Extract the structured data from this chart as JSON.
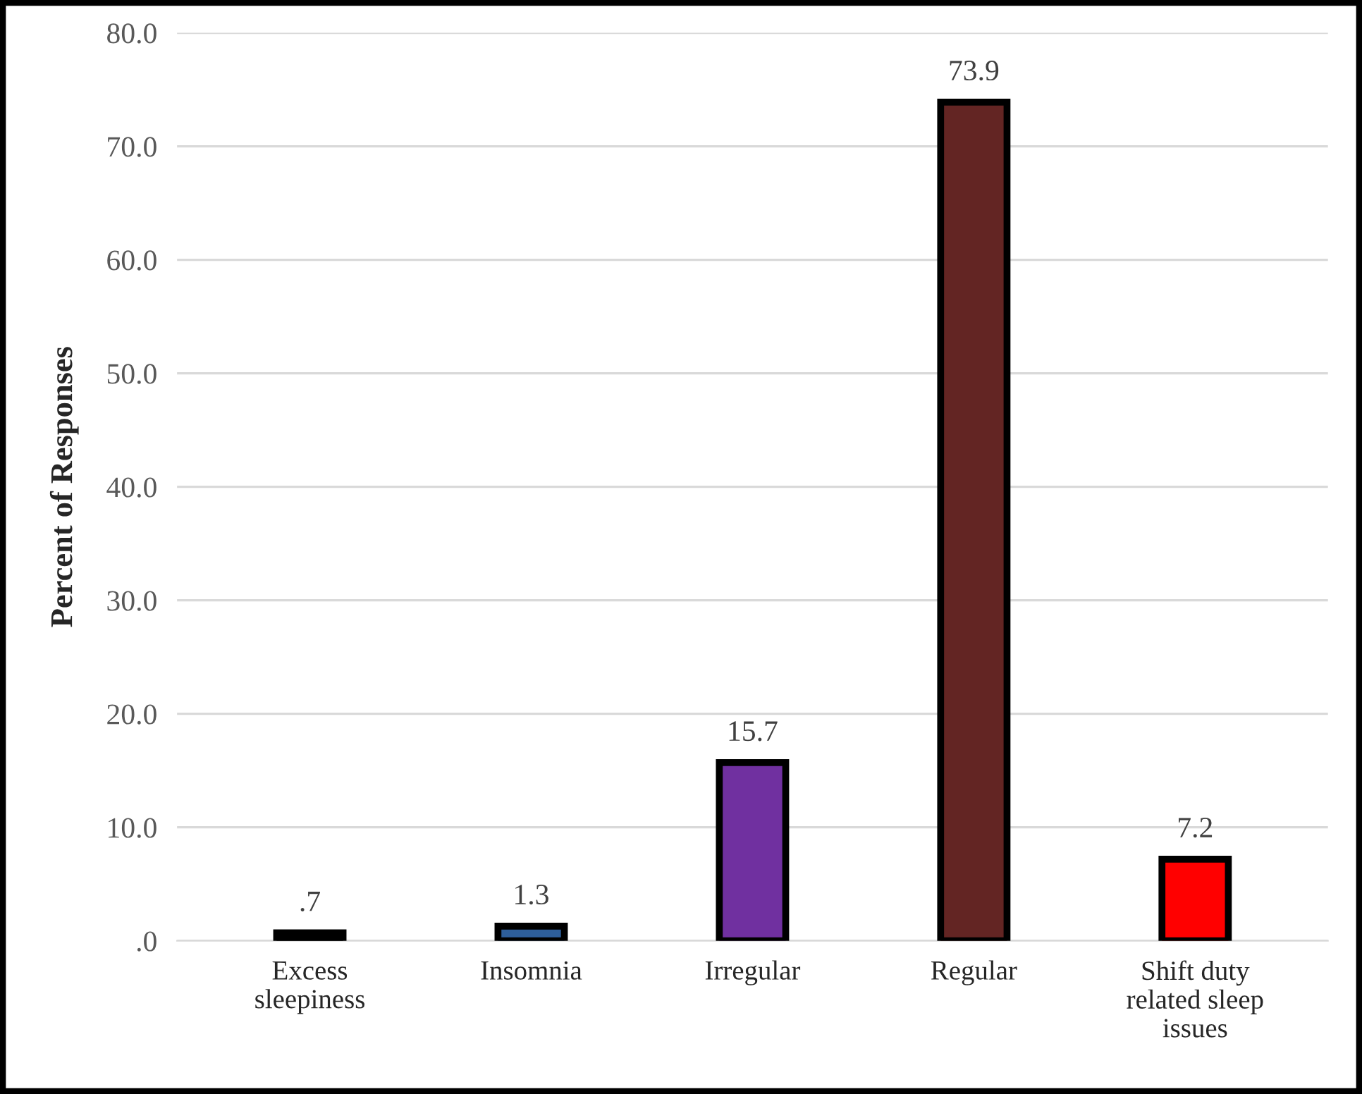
{
  "chart_data": {
    "type": "bar",
    "ylabel": "Percent of Responses",
    "categories": [
      "Excess\nsleepiness",
      "Insomnia",
      "Irregular",
      "Regular",
      "Shift duty\nrelated sleep\nissues"
    ],
    "values": [
      0.7,
      1.3,
      15.7,
      73.9,
      7.2
    ],
    "colors": [
      "#000000",
      "#2e5e9a",
      "#7030a0",
      "#632523",
      "#ff0000"
    ],
    "value_labels": [
      ".7",
      "1.3",
      "15.7",
      "73.9",
      "7.2"
    ],
    "ylim": [
      0,
      80
    ],
    "yticks": [
      {
        "value": 0,
        "label": ".0"
      },
      {
        "value": 10,
        "label": "10.0"
      },
      {
        "value": 20,
        "label": "20.0"
      },
      {
        "value": 30,
        "label": "30.0"
      },
      {
        "value": 40,
        "label": "40.0"
      },
      {
        "value": 50,
        "label": "50.0"
      },
      {
        "value": 60,
        "label": "60.0"
      },
      {
        "value": 70,
        "label": "70.0"
      },
      {
        "value": 80,
        "label": "80.0"
      }
    ],
    "grid": "y",
    "legend": false
  }
}
